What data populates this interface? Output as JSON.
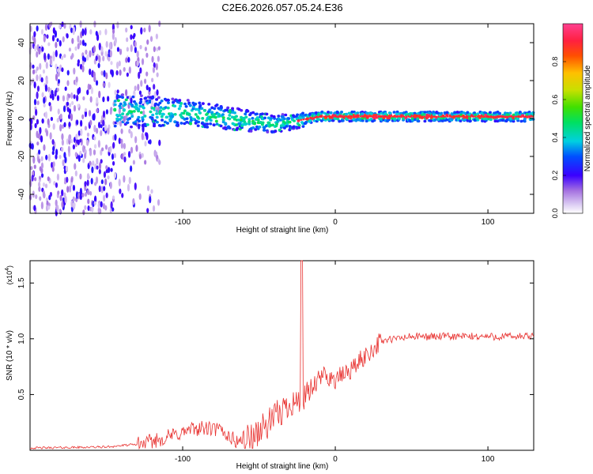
{
  "figure": {
    "title": "C2E6.2026.057.05.24.E36"
  },
  "chart_data": [
    {
      "type": "heatmap",
      "name": "spectrogram",
      "xlabel": "Height of straight line (km)",
      "ylabel": "Frequency (Hz)",
      "xlim": [
        -200,
        130
      ],
      "ylim": [
        -50,
        50
      ],
      "x_ticks": [
        -100,
        0,
        100
      ],
      "y_ticks": [
        -40,
        -20,
        0,
        20,
        40
      ],
      "ridge": {
        "description_points": [
          {
            "x": -140,
            "y": 4
          },
          {
            "x": -100,
            "y": 3
          },
          {
            "x": -80,
            "y": 1
          },
          {
            "x": -60,
            "y": -1
          },
          {
            "x": -40,
            "y": -3
          },
          {
            "x": -25,
            "y": -1
          },
          {
            "x": -10,
            "y": 1
          },
          {
            "x": 0,
            "y": 1
          },
          {
            "x": 130,
            "y": 1
          }
        ]
      },
      "colorbar": {
        "label": "Normalized spectral amplitude",
        "range": [
          0,
          1
        ],
        "ticks": [
          0.0,
          0.2,
          0.4,
          0.6,
          0.8
        ],
        "tick_labels": [
          "0.0",
          "0.2",
          "0.4",
          "0.6",
          "0.8"
        ]
      }
    },
    {
      "type": "line",
      "name": "snr",
      "xlabel": "Height of straight line (km)",
      "ylabel": "SNR (10 * v/v)",
      "y_multiplier": "(x10",
      "y_multiplier_exp": "4",
      "y_multiplier_close": ")",
      "xlim": [
        -200,
        130
      ],
      "ylim": [
        0,
        1.7
      ],
      "x_ticks": [
        -100,
        0,
        100
      ],
      "y_ticks": [
        0.5,
        1.0,
        1.5
      ],
      "y_tick_labels": [
        "0.5",
        "1.0",
        "1.5"
      ],
      "color": "#e8312f",
      "profile": [
        {
          "x": -200,
          "y": 0.02
        },
        {
          "x": -150,
          "y": 0.03
        },
        {
          "x": -125,
          "y": 0.06
        },
        {
          "x": -110,
          "y": 0.12
        },
        {
          "x": -90,
          "y": 0.2
        },
        {
          "x": -75,
          "y": 0.18
        },
        {
          "x": -65,
          "y": 0.08
        },
        {
          "x": -55,
          "y": 0.12
        },
        {
          "x": -45,
          "y": 0.22
        },
        {
          "x": -35,
          "y": 0.35
        },
        {
          "x": -28,
          "y": 0.45
        },
        {
          "x": -22,
          "y": 0.4
        },
        {
          "x": -15,
          "y": 0.55
        },
        {
          "x": -8,
          "y": 0.68
        },
        {
          "x": 0,
          "y": 0.63
        },
        {
          "x": 10,
          "y": 0.72
        },
        {
          "x": 20,
          "y": 0.85
        },
        {
          "x": 30,
          "y": 0.98
        },
        {
          "x": 50,
          "y": 1.02
        },
        {
          "x": 130,
          "y": 1.02
        }
      ],
      "spike": {
        "x": -22,
        "y": 1.7
      }
    }
  ]
}
